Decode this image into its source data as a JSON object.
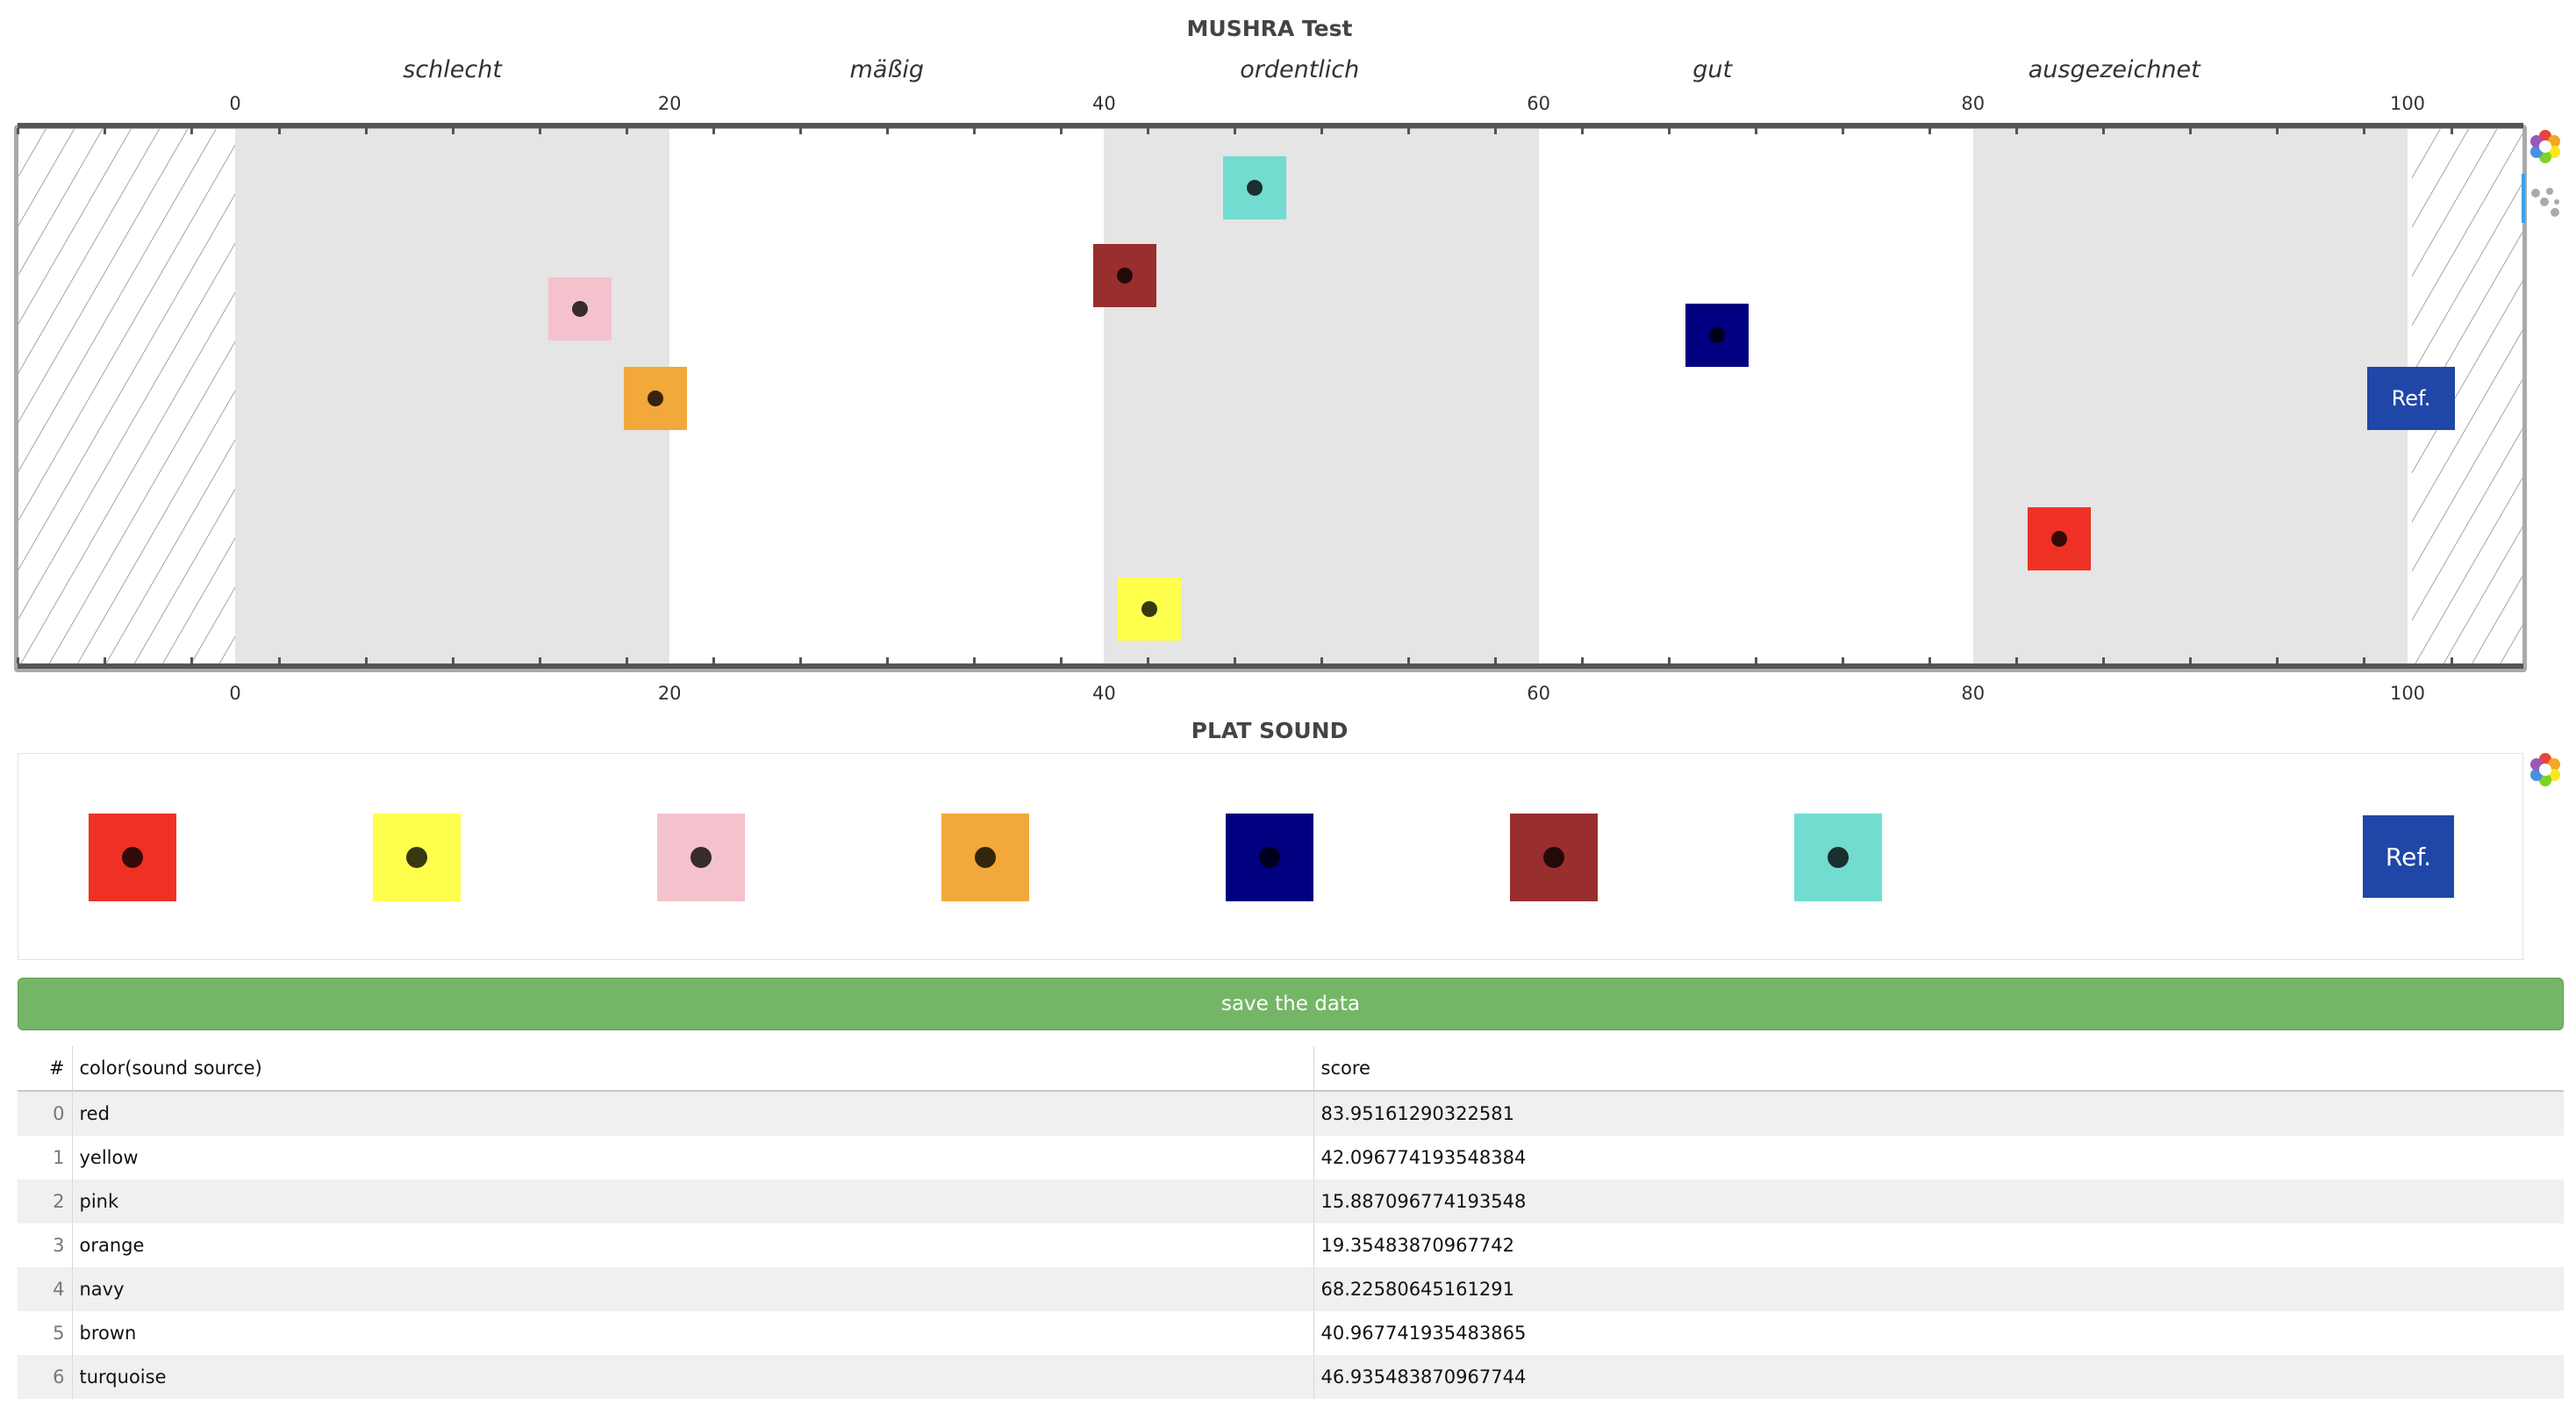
{
  "chart_data": {
    "type": "scatter",
    "title": "MUSHRA Test",
    "x_ticks": [
      0,
      20,
      40,
      60,
      80,
      100
    ],
    "xlim": [
      -10,
      105
    ],
    "categories": [
      "schlecht",
      "mäßig",
      "ordentlich",
      "gut",
      "ausgezeichnet"
    ],
    "bands": [
      [
        0,
        20
      ],
      [
        40,
        60
      ],
      [
        80,
        100
      ]
    ],
    "points": [
      {
        "name": "red",
        "color": "#ee3124",
        "x": 83.95161290322581
      },
      {
        "name": "yellow",
        "color": "#ffff4d",
        "x": 42.096774193548384
      },
      {
        "name": "pink",
        "color": "#f4c2cc",
        "x": 15.887096774193548
      },
      {
        "name": "orange",
        "color": "#f2a83a",
        "x": 19.35483870967742
      },
      {
        "name": "navy",
        "color": "#000080",
        "x": 68.22580645161291
      },
      {
        "name": "brown",
        "color": "#992e2e",
        "x": 40.967741935483865
      },
      {
        "name": "turquoise",
        "color": "#72dcd0",
        "x": 46.935483870967744
      }
    ],
    "reference": {
      "label": "Ref.",
      "color": "#2047a8"
    }
  },
  "palette": {
    "title": "PLAT SOUND",
    "items": [
      {
        "name": "red",
        "color": "#ee3124"
      },
      {
        "name": "yellow",
        "color": "#ffff4d"
      },
      {
        "name": "pink",
        "color": "#f4c2cc"
      },
      {
        "name": "orange",
        "color": "#f2a83a"
      },
      {
        "name": "navy",
        "color": "#000080"
      },
      {
        "name": "brown",
        "color": "#992e2e"
      },
      {
        "name": "turquoise",
        "color": "#72dcd0"
      }
    ],
    "ref_label": "Ref."
  },
  "save_button": {
    "label": "save the data"
  },
  "table": {
    "headers": [
      "#",
      "color(sound source)",
      "score"
    ],
    "rows": [
      {
        "index": "0",
        "color": "red",
        "score": "83.95161290322581"
      },
      {
        "index": "1",
        "color": "yellow",
        "score": "42.096774193548384"
      },
      {
        "index": "2",
        "color": "pink",
        "score": "15.887096774193548"
      },
      {
        "index": "3",
        "color": "orange",
        "score": "19.35483870967742"
      },
      {
        "index": "4",
        "color": "navy",
        "score": "68.22580645161291"
      },
      {
        "index": "5",
        "color": "brown",
        "score": "40.967741935483865"
      },
      {
        "index": "6",
        "color": "turquoise",
        "score": "46.935483870967744"
      }
    ]
  },
  "toolbar": {
    "icons": [
      "bokeh-logo-icon",
      "drag-points-icon"
    ]
  }
}
